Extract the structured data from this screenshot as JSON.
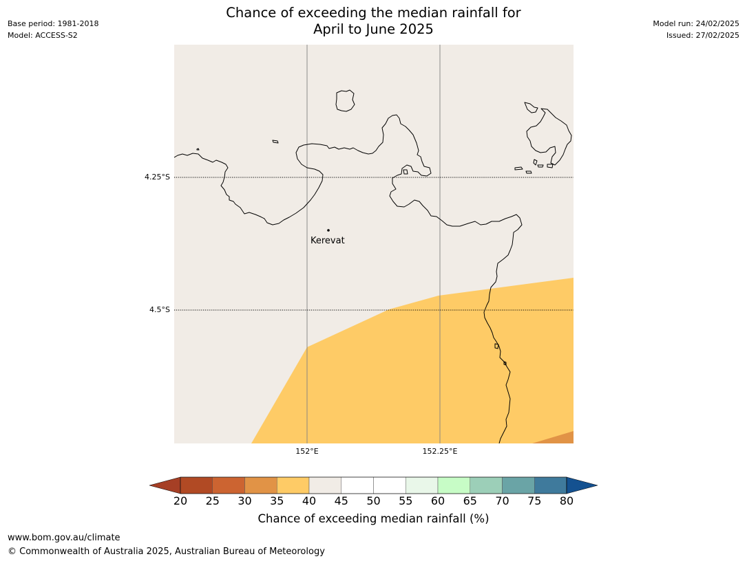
{
  "title_line1": "Chance of exceeding the median rainfall for",
  "title_line2": "April to June 2025",
  "meta_left": {
    "base_period": "Base period: 1981-2018",
    "model": "Model: ACCESS-S2"
  },
  "meta_right": {
    "model_run": "Model run: 24/02/2025",
    "issued": "Issued: 27/02/2025"
  },
  "map": {
    "latitudes": [
      "4.25°S",
      "4.5°S"
    ],
    "longitudes": [
      "152°E",
      "152.25°E"
    ],
    "place": "Kerevat",
    "colors": {
      "background_40_45": "#f1ece6",
      "band_35_40": "#fecb66",
      "band_30_35": "#e19346",
      "coastline": "#000000",
      "gridline": "#808080"
    }
  },
  "colorbar": {
    "ticks": [
      "20",
      "25",
      "30",
      "35",
      "40",
      "45",
      "50",
      "55",
      "60",
      "65",
      "70",
      "75",
      "80"
    ],
    "colors": [
      "#a63f25",
      "#b14a24",
      "#cc6431",
      "#e19346",
      "#fecb66",
      "#f1ece6",
      "#ffffff",
      "#ffffff",
      "#e9f7e9",
      "#c7fcc6",
      "#9ccfb8",
      "#6aa4a6",
      "#3f7a9c",
      "#145190"
    ],
    "label": "Chance of exceeding median rainfall (%)"
  },
  "footer": {
    "url": "www.bom.gov.au/climate",
    "copyright": "© Commonwealth of Australia 2025, Australian Bureau of Meteorology"
  }
}
